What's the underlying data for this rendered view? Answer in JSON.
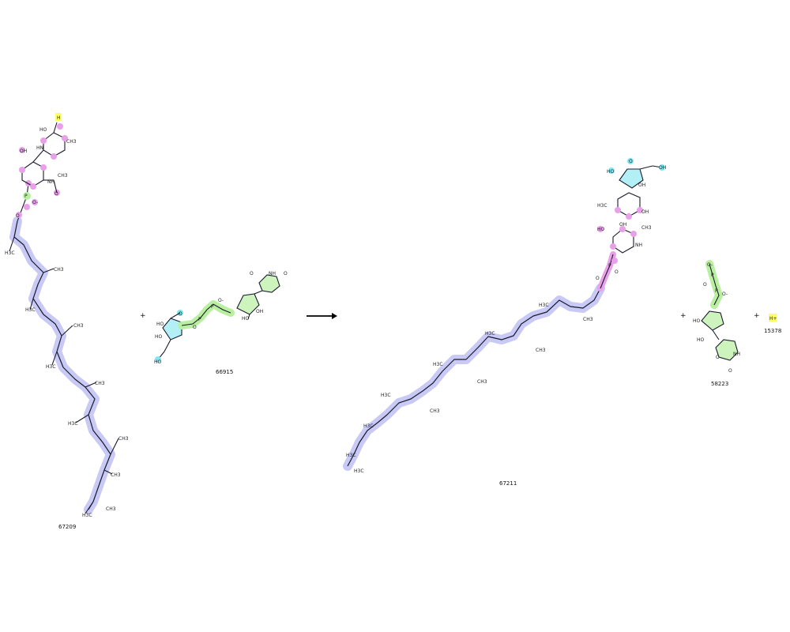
{
  "reaction": {
    "reactants": [
      {
        "id": "67209"
      },
      {
        "id": "66915"
      }
    ],
    "products": [
      {
        "id": "67211"
      },
      {
        "id": "58223"
      },
      {
        "id": "15378"
      }
    ],
    "plus_symbol": "+",
    "proton_label": "H+"
  },
  "colors": {
    "chain_highlight": "#c9c9f5",
    "sugar_highlight": "#e8a0e8",
    "phosphate_highlight": "#b8f0a0",
    "ribose_highlight": "#7fe6f0",
    "proton_highlight": "#ffff66",
    "bond": "#1a1a2e",
    "arrow": "#000000"
  }
}
